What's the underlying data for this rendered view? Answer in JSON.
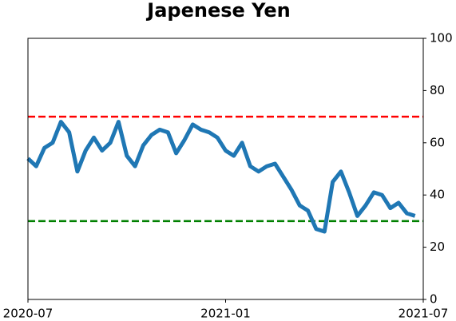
{
  "chart_data": {
    "type": "line",
    "title": "Japenese Yen",
    "x": [
      "2020-07",
      "2020-07",
      "2020-07",
      "2020-07",
      "2020-08",
      "2020-08",
      "2020-08",
      "2020-08",
      "2020-09",
      "2020-09",
      "2020-09",
      "2020-09",
      "2020-10",
      "2020-10",
      "2020-10",
      "2020-10",
      "2020-11",
      "2020-11",
      "2020-11",
      "2020-11",
      "2020-12",
      "2020-12",
      "2020-12",
      "2020-12",
      "2021-01",
      "2021-01",
      "2021-01",
      "2021-01",
      "2021-02",
      "2021-02",
      "2021-02",
      "2021-02",
      "2021-03",
      "2021-03",
      "2021-03",
      "2021-03",
      "2021-04",
      "2021-04",
      "2021-04",
      "2021-04",
      "2021-05",
      "2021-05",
      "2021-05",
      "2021-05",
      "2021-06",
      "2021-06",
      "2021-06",
      "2021-06"
    ],
    "series": [
      {
        "color": "#1f77b4",
        "values": [
          54,
          51,
          58,
          60,
          68,
          64,
          49,
          57,
          62,
          57,
          60,
          68,
          55,
          51,
          59,
          63,
          65,
          64,
          56,
          61,
          67,
          65,
          64,
          62,
          57,
          55,
          60,
          51,
          49,
          51,
          52,
          47,
          42,
          36,
          34,
          27,
          26,
          45,
          49,
          41,
          32,
          36,
          41,
          40,
          35,
          37,
          33,
          32
        ]
      }
    ],
    "hlines": [
      {
        "value": 70,
        "color": "#ff0000"
      },
      {
        "value": 30,
        "color": "#008000"
      }
    ],
    "xlim": [
      "2020-07",
      "2021-07"
    ],
    "xticks": [
      "2020-07",
      "2021-01",
      "2021-07"
    ],
    "ylim": [
      0,
      100
    ],
    "yticks": [
      0,
      20,
      40,
      60,
      80,
      100
    ],
    "y_axis_side": "right"
  }
}
